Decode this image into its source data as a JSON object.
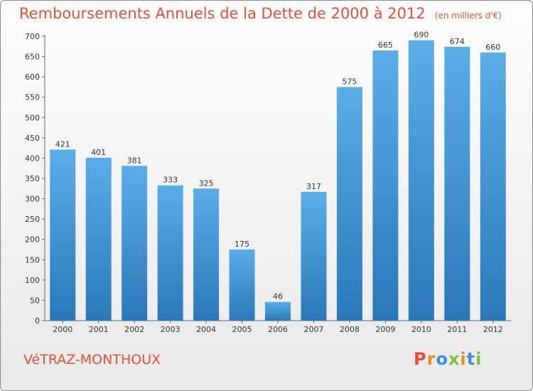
{
  "chart_data": {
    "type": "bar",
    "title": "Remboursements Annuels de la Dette de 2000 à 2012",
    "subtitle": "(en milliers d'€)",
    "xlabel": "",
    "ylabel": "",
    "categories": [
      "2000",
      "2001",
      "2002",
      "2003",
      "2004",
      "2005",
      "2006",
      "2007",
      "2008",
      "2009",
      "2010",
      "2011",
      "2012"
    ],
    "values": [
      421,
      401,
      381,
      333,
      325,
      175,
      46,
      317,
      575,
      665,
      690,
      674,
      660
    ],
    "ylim": [
      0,
      700
    ],
    "yticks": [
      0,
      50,
      100,
      150,
      200,
      250,
      300,
      350,
      400,
      450,
      500,
      550,
      600,
      650,
      700
    ],
    "grid": false,
    "legend": "none",
    "bar_color_top": "#5aaee8",
    "bar_color_bottom": "#2a78b8"
  },
  "footer": {
    "commune": "VéTRAZ-MONTHOUX",
    "brand": "Proxiti"
  },
  "colors": {
    "title": "#e0503a",
    "brand_letters": [
      "#e0503a",
      "#f08a1c",
      "#3a8fd8",
      "#7cc242",
      "#f08a1c",
      "#3a8fd8",
      "#7cc242"
    ]
  }
}
